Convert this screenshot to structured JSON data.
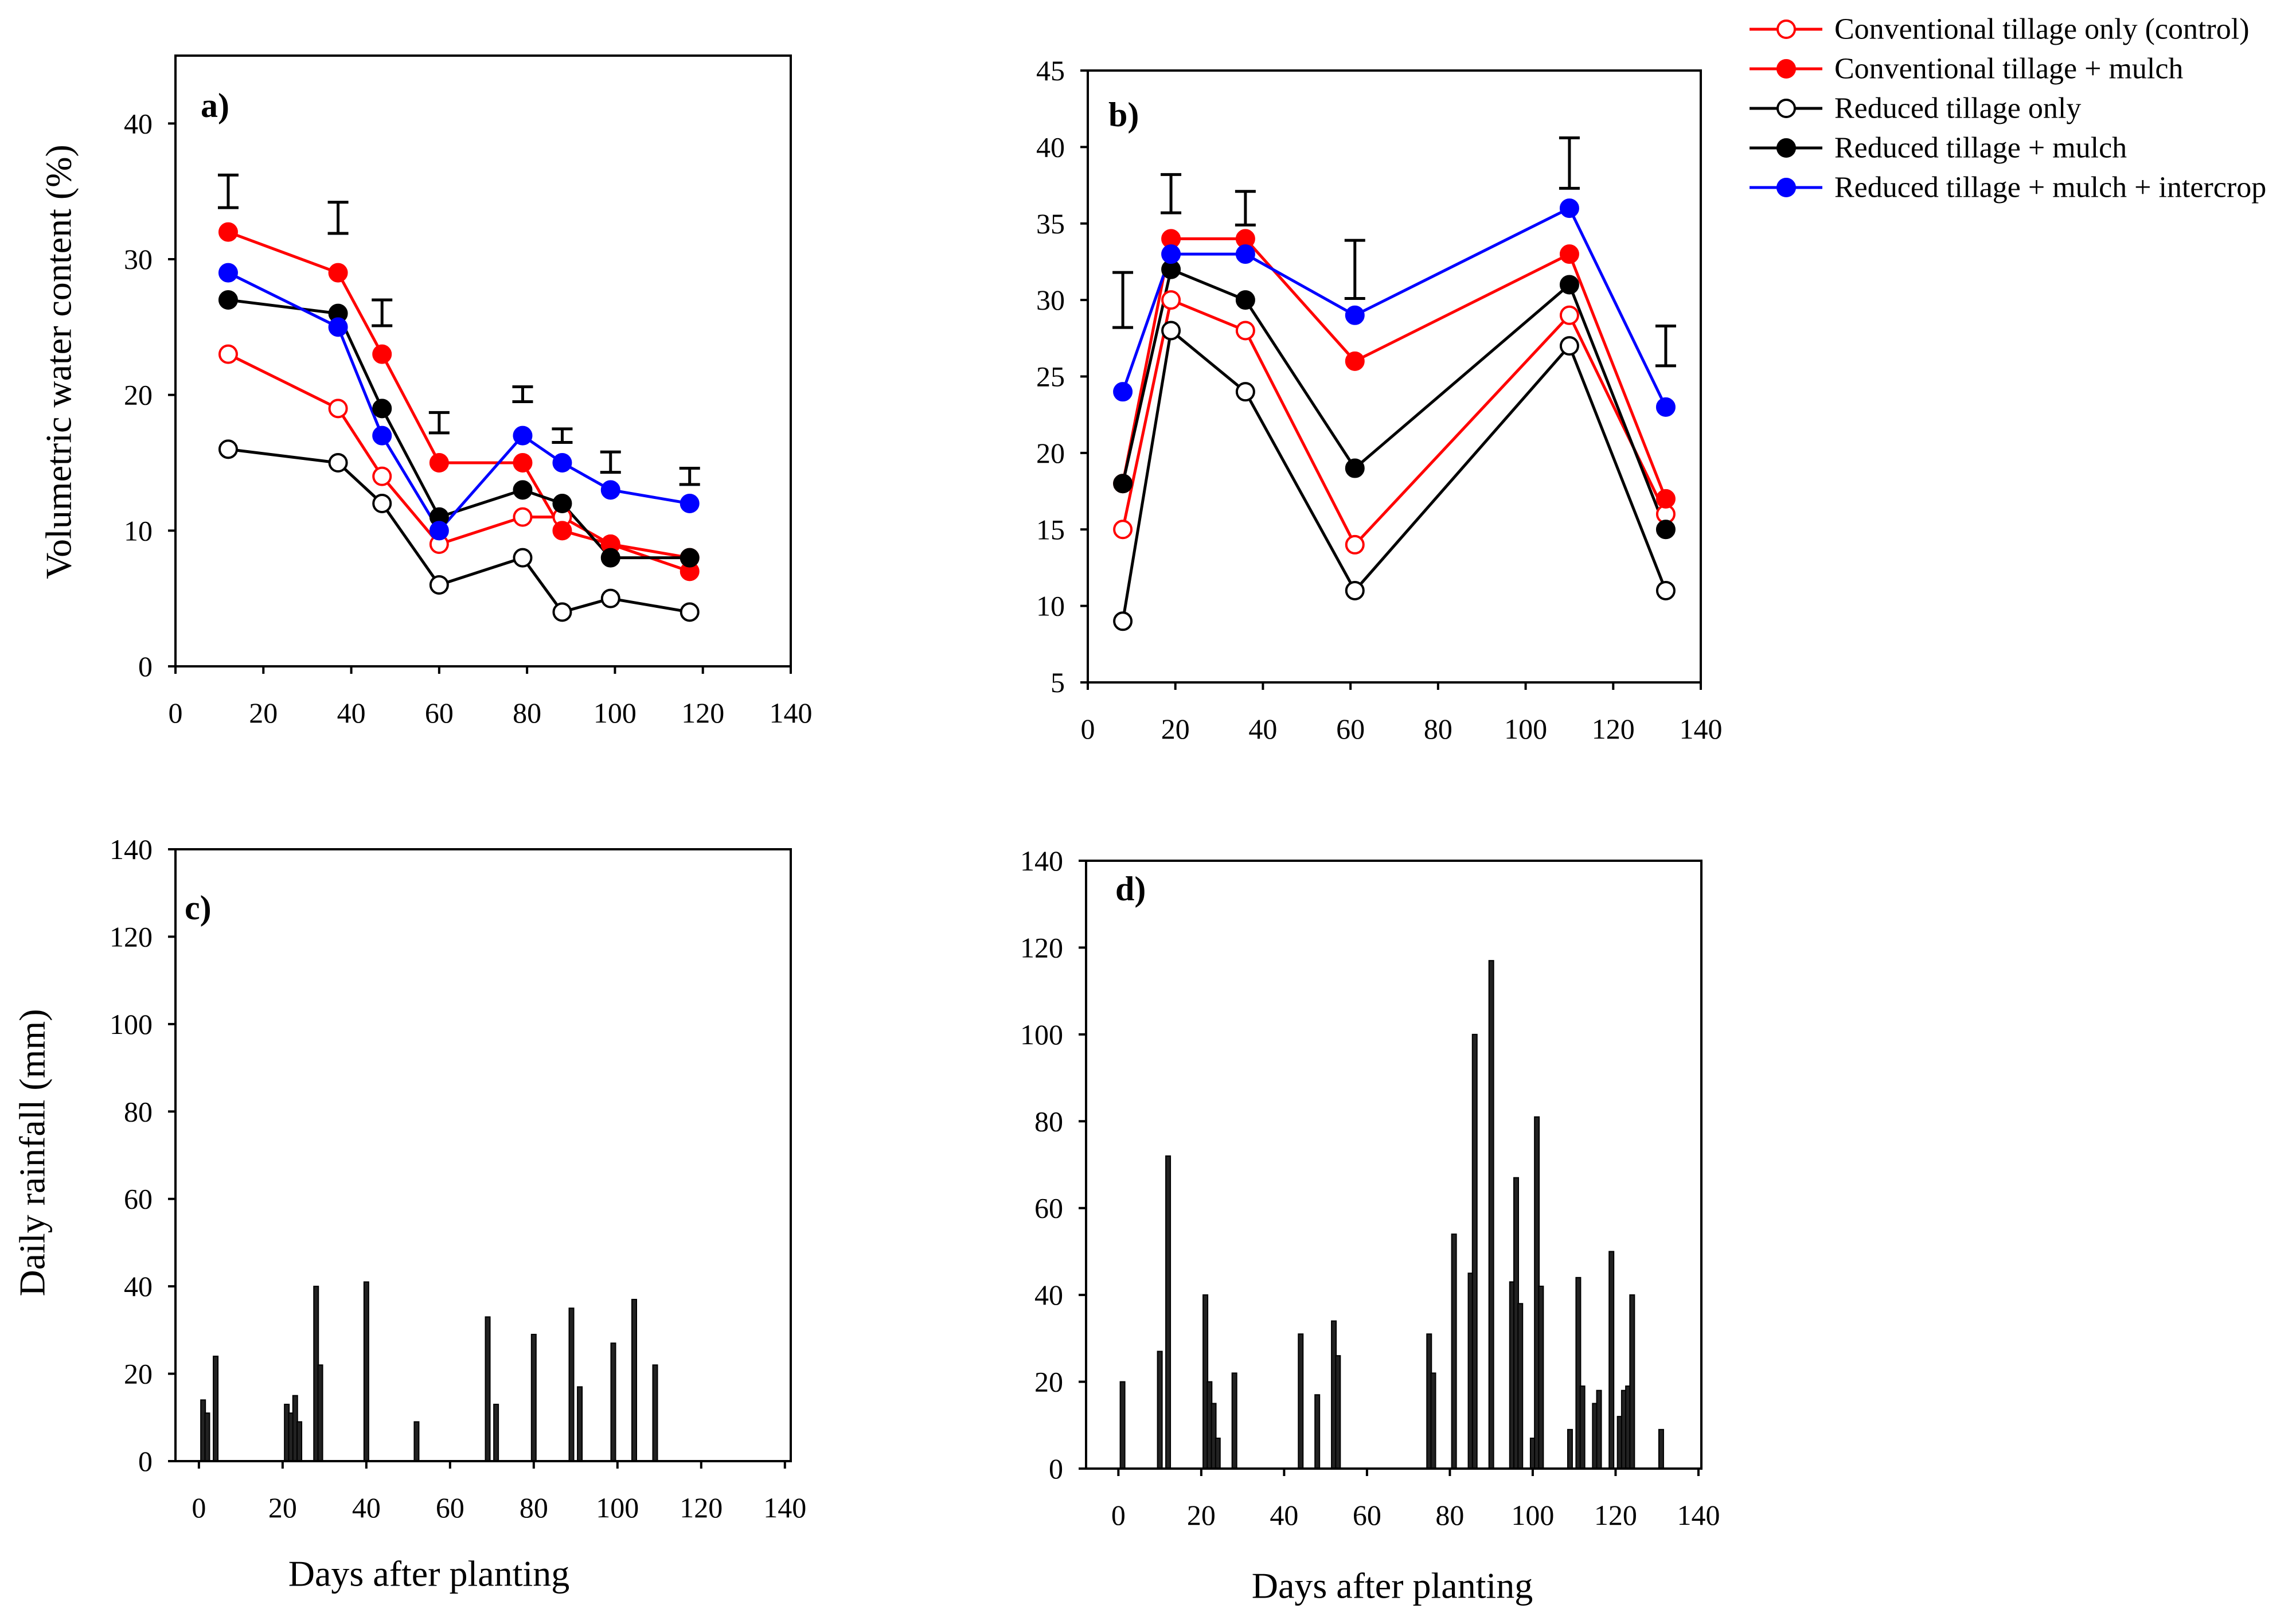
{
  "legend": {
    "items": [
      {
        "label": "Conventional tillage only (control)",
        "color": "#ff0000",
        "filled": false
      },
      {
        "label": "Conventional tillage + mulch",
        "color": "#ff0000",
        "filled": true
      },
      {
        "label": "Reduced tillage only",
        "color": "#000000",
        "filled": false
      },
      {
        "label": "Reduced tillage + mulch",
        "color": "#000000",
        "filled": true
      },
      {
        "label": "Reduced tillage + mulch + intercrop",
        "color": "#0000ff",
        "filled": true
      }
    ]
  },
  "chart_data": [
    {
      "panel_label": "a)",
      "type": "line",
      "xlabel": "",
      "ylabel": "Volumetric water content (%)",
      "xlim": [
        0,
        140
      ],
      "ylim": [
        0,
        45
      ],
      "xticks": [
        0,
        20,
        40,
        60,
        80,
        100,
        120,
        140
      ],
      "yticks": [
        0,
        10,
        20,
        30,
        40
      ],
      "x": [
        12,
        37,
        47,
        60,
        79,
        88,
        99,
        117
      ],
      "series": [
        {
          "legend_item": 0,
          "values": [
            23,
            19,
            14,
            9,
            11,
            11,
            9,
            8
          ]
        },
        {
          "legend_item": 1,
          "values": [
            32,
            29,
            23,
            15,
            15,
            10,
            9,
            7
          ]
        },
        {
          "legend_item": 2,
          "values": [
            16,
            15,
            12,
            6,
            8,
            4,
            5,
            4
          ]
        },
        {
          "legend_item": 3,
          "values": [
            27,
            26,
            19,
            11,
            13,
            12,
            8,
            8
          ]
        },
        {
          "legend_item": 4,
          "values": [
            29,
            25,
            17,
            10,
            17,
            15,
            13,
            12
          ]
        }
      ],
      "error_bars": {
        "x": [
          12,
          37,
          47,
          60,
          79,
          88,
          99,
          117
        ],
        "low": [
          33.8,
          31.9,
          25.1,
          17.2,
          19.5,
          16.5,
          14.3,
          13.4
        ],
        "high": [
          36.2,
          34.2,
          27.0,
          18.7,
          20.6,
          17.5,
          15.8,
          14.6
        ]
      }
    },
    {
      "panel_label": "b)",
      "type": "line",
      "xlabel": "",
      "ylabel": "",
      "xlim": [
        0,
        140
      ],
      "ylim": [
        5,
        45
      ],
      "xticks": [
        0,
        20,
        40,
        60,
        80,
        100,
        120,
        140
      ],
      "yticks": [
        5,
        10,
        15,
        20,
        25,
        30,
        35,
        40,
        45
      ],
      "x": [
        8,
        19,
        36,
        61,
        110,
        132
      ],
      "series": [
        {
          "legend_item": 0,
          "values": [
            15,
            30,
            28,
            14,
            29,
            16
          ]
        },
        {
          "legend_item": 1,
          "values": [
            18,
            34,
            34,
            26,
            33,
            17
          ]
        },
        {
          "legend_item": 2,
          "values": [
            9,
            28,
            24,
            11,
            27,
            11
          ]
        },
        {
          "legend_item": 3,
          "values": [
            18,
            32,
            30,
            19,
            31,
            15
          ]
        },
        {
          "legend_item": 4,
          "values": [
            24,
            33,
            33,
            29,
            36,
            23
          ]
        }
      ],
      "error_bars": {
        "x": [
          8,
          19,
          36,
          61,
          110,
          132
        ],
        "low": [
          28.2,
          35.7,
          34.9,
          30.1,
          37.3,
          25.7
        ],
        "high": [
          31.8,
          38.2,
          37.1,
          33.9,
          40.6,
          28.3
        ]
      }
    },
    {
      "panel_label": "c)",
      "type": "bar",
      "xlabel": "Days after planting",
      "ylabel": "Daily rainfall (mm)",
      "xlim": [
        -5.6,
        141.4
      ],
      "ylim": [
        0,
        140
      ],
      "xticks": [
        0,
        20,
        40,
        60,
        80,
        100,
        120,
        140
      ],
      "yticks": [
        0,
        20,
        40,
        60,
        80,
        100,
        120,
        140
      ],
      "x": [
        1,
        2,
        4,
        21,
        22,
        23,
        24,
        28,
        29,
        40,
        52,
        69,
        71,
        80,
        89,
        91,
        99,
        104,
        109
      ],
      "values": [
        14,
        11,
        24,
        13,
        11,
        15,
        9,
        40,
        22,
        41,
        9,
        33,
        13,
        29,
        35,
        17,
        27,
        37,
        22
      ]
    },
    {
      "panel_label": "d)",
      "type": "bar",
      "xlabel": "Days after planting",
      "ylabel": "",
      "xlim": [
        -7.8,
        140.7
      ],
      "ylim": [
        0,
        140
      ],
      "xticks": [
        0,
        20,
        40,
        60,
        80,
        100,
        120,
        140
      ],
      "yticks": [
        0,
        20,
        40,
        60,
        80,
        100,
        120,
        140
      ],
      "x": [
        1,
        10,
        12,
        21,
        22,
        23,
        24,
        28,
        44,
        48,
        52,
        53,
        75,
        76,
        81,
        85,
        86,
        90,
        95,
        96,
        97,
        100,
        101,
        102,
        109,
        111,
        112,
        115,
        116,
        119,
        121,
        122,
        123,
        124,
        131
      ],
      "values": [
        20,
        27,
        72,
        40,
        20,
        15,
        7,
        22,
        31,
        17,
        34,
        26,
        31,
        22,
        54,
        45,
        100,
        117,
        43,
        67,
        38,
        7,
        81,
        42,
        9,
        44,
        19,
        15,
        18,
        50,
        12,
        18,
        19,
        40,
        9
      ]
    }
  ]
}
